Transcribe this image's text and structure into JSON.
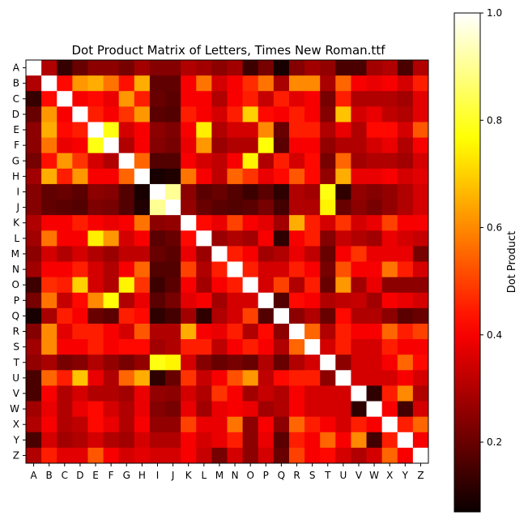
{
  "chart_data": {
    "type": "heatmap",
    "title": "Dot Product Matrix of Letters, Times New Roman.ttf",
    "x_categories": [
      "A",
      "B",
      "C",
      "D",
      "E",
      "F",
      "G",
      "H",
      "I",
      "J",
      "K",
      "L",
      "M",
      "N",
      "O",
      "P",
      "Q",
      "R",
      "S",
      "T",
      "U",
      "V",
      "W",
      "X",
      "Y",
      "Z"
    ],
    "y_categories": [
      "A",
      "B",
      "C",
      "D",
      "E",
      "F",
      "G",
      "H",
      "I",
      "J",
      "K",
      "L",
      "M",
      "N",
      "O",
      "P",
      "Q",
      "R",
      "S",
      "T",
      "U",
      "V",
      "W",
      "X",
      "Y",
      "Z"
    ],
    "colorbar": {
      "label": "Dot Product",
      "colormap": "hot",
      "range": [
        0.07,
        1.0
      ],
      "ticks": [
        0.2,
        0.4,
        0.6,
        0.8,
        1.0
      ],
      "tick_labels": [
        "0.2",
        "0.4",
        "0.6",
        "0.8",
        "1.0"
      ]
    },
    "values": [
      [
        1.0,
        0.3,
        0.13,
        0.2,
        0.25,
        0.25,
        0.22,
        0.28,
        0.24,
        0.24,
        0.3,
        0.28,
        0.25,
        0.28,
        0.14,
        0.22,
        0.09,
        0.24,
        0.28,
        0.26,
        0.16,
        0.16,
        0.28,
        0.3,
        0.16,
        0.3
      ],
      [
        0.3,
        1.0,
        0.42,
        0.62,
        0.65,
        0.57,
        0.43,
        0.65,
        0.19,
        0.19,
        0.4,
        0.57,
        0.35,
        0.4,
        0.47,
        0.57,
        0.29,
        0.6,
        0.6,
        0.29,
        0.55,
        0.4,
        0.38,
        0.4,
        0.35,
        0.45
      ],
      [
        0.13,
        0.42,
        1.0,
        0.4,
        0.42,
        0.38,
        0.62,
        0.45,
        0.2,
        0.18,
        0.4,
        0.4,
        0.3,
        0.4,
        0.45,
        0.33,
        0.45,
        0.37,
        0.4,
        0.22,
        0.45,
        0.3,
        0.3,
        0.3,
        0.28,
        0.37
      ],
      [
        0.2,
        0.62,
        0.4,
        1.0,
        0.45,
        0.4,
        0.48,
        0.62,
        0.18,
        0.17,
        0.45,
        0.4,
        0.35,
        0.45,
        0.7,
        0.42,
        0.4,
        0.45,
        0.4,
        0.24,
        0.68,
        0.35,
        0.38,
        0.32,
        0.3,
        0.37
      ],
      [
        0.25,
        0.65,
        0.42,
        0.45,
        1.0,
        0.78,
        0.35,
        0.4,
        0.25,
        0.23,
        0.4,
        0.74,
        0.3,
        0.35,
        0.35,
        0.6,
        0.2,
        0.45,
        0.45,
        0.3,
        0.38,
        0.3,
        0.42,
        0.42,
        0.35,
        0.53
      ],
      [
        0.25,
        0.57,
        0.38,
        0.4,
        0.78,
        1.0,
        0.3,
        0.4,
        0.24,
        0.22,
        0.38,
        0.62,
        0.27,
        0.3,
        0.3,
        0.77,
        0.18,
        0.4,
        0.4,
        0.26,
        0.3,
        0.3,
        0.35,
        0.38,
        0.3,
        0.4
      ],
      [
        0.22,
        0.43,
        0.62,
        0.48,
        0.35,
        0.3,
        1.0,
        0.55,
        0.17,
        0.17,
        0.4,
        0.35,
        0.32,
        0.4,
        0.75,
        0.3,
        0.45,
        0.35,
        0.42,
        0.22,
        0.55,
        0.28,
        0.3,
        0.3,
        0.28,
        0.35
      ],
      [
        0.28,
        0.65,
        0.45,
        0.62,
        0.4,
        0.4,
        0.55,
        1.0,
        0.09,
        0.1,
        0.57,
        0.4,
        0.32,
        0.55,
        0.48,
        0.38,
        0.42,
        0.53,
        0.42,
        0.26,
        0.65,
        0.38,
        0.38,
        0.4,
        0.35,
        0.37
      ],
      [
        0.24,
        0.19,
        0.2,
        0.18,
        0.25,
        0.24,
        0.17,
        0.09,
        1.0,
        0.9,
        0.25,
        0.18,
        0.2,
        0.17,
        0.14,
        0.18,
        0.12,
        0.3,
        0.28,
        0.78,
        0.12,
        0.26,
        0.24,
        0.26,
        0.3,
        0.35
      ],
      [
        0.24,
        0.19,
        0.18,
        0.17,
        0.23,
        0.22,
        0.17,
        0.1,
        0.9,
        1.0,
        0.26,
        0.2,
        0.18,
        0.17,
        0.18,
        0.22,
        0.15,
        0.3,
        0.3,
        0.75,
        0.2,
        0.25,
        0.22,
        0.26,
        0.3,
        0.35
      ],
      [
        0.3,
        0.4,
        0.4,
        0.45,
        0.4,
        0.38,
        0.4,
        0.57,
        0.25,
        0.26,
        1.0,
        0.42,
        0.38,
        0.5,
        0.4,
        0.37,
        0.28,
        0.65,
        0.45,
        0.35,
        0.48,
        0.35,
        0.38,
        0.5,
        0.4,
        0.4
      ],
      [
        0.28,
        0.57,
        0.4,
        0.4,
        0.74,
        0.62,
        0.35,
        0.4,
        0.18,
        0.2,
        0.42,
        1.0,
        0.27,
        0.3,
        0.28,
        0.4,
        0.12,
        0.4,
        0.45,
        0.24,
        0.33,
        0.3,
        0.28,
        0.38,
        0.35,
        0.33
      ],
      [
        0.25,
        0.35,
        0.3,
        0.35,
        0.3,
        0.27,
        0.32,
        0.32,
        0.2,
        0.18,
        0.38,
        0.27,
        1.0,
        0.45,
        0.4,
        0.28,
        0.3,
        0.38,
        0.32,
        0.2,
        0.4,
        0.48,
        0.38,
        0.38,
        0.38,
        0.22
      ],
      [
        0.28,
        0.4,
        0.4,
        0.45,
        0.35,
        0.3,
        0.4,
        0.55,
        0.17,
        0.17,
        0.5,
        0.3,
        0.45,
        1.0,
        0.45,
        0.35,
        0.35,
        0.45,
        0.4,
        0.22,
        0.52,
        0.4,
        0.4,
        0.57,
        0.45,
        0.35
      ],
      [
        0.14,
        0.47,
        0.45,
        0.7,
        0.35,
        0.3,
        0.75,
        0.48,
        0.14,
        0.18,
        0.4,
        0.28,
        0.4,
        0.45,
        1.0,
        0.35,
        0.5,
        0.3,
        0.45,
        0.2,
        0.62,
        0.28,
        0.38,
        0.25,
        0.25,
        0.25
      ],
      [
        0.22,
        0.57,
        0.33,
        0.42,
        0.6,
        0.77,
        0.3,
        0.38,
        0.18,
        0.22,
        0.37,
        0.4,
        0.28,
        0.35,
        0.35,
        1.0,
        0.17,
        0.42,
        0.4,
        0.3,
        0.32,
        0.33,
        0.28,
        0.4,
        0.38,
        0.35
      ],
      [
        0.09,
        0.29,
        0.45,
        0.4,
        0.2,
        0.18,
        0.45,
        0.42,
        0.12,
        0.15,
        0.28,
        0.12,
        0.3,
        0.35,
        0.5,
        0.17,
        1.0,
        0.25,
        0.3,
        0.2,
        0.42,
        0.3,
        0.3,
        0.25,
        0.18,
        0.2
      ],
      [
        0.24,
        0.6,
        0.37,
        0.45,
        0.45,
        0.4,
        0.35,
        0.53,
        0.3,
        0.3,
        0.65,
        0.4,
        0.38,
        0.45,
        0.3,
        0.42,
        0.25,
        1.0,
        0.55,
        0.3,
        0.45,
        0.4,
        0.4,
        0.55,
        0.45,
        0.5
      ],
      [
        0.28,
        0.6,
        0.4,
        0.4,
        0.45,
        0.4,
        0.42,
        0.42,
        0.28,
        0.3,
        0.45,
        0.45,
        0.32,
        0.4,
        0.45,
        0.4,
        0.3,
        0.55,
        1.0,
        0.35,
        0.45,
        0.35,
        0.35,
        0.45,
        0.4,
        0.4
      ],
      [
        0.26,
        0.29,
        0.22,
        0.24,
        0.3,
        0.26,
        0.22,
        0.26,
        0.78,
        0.75,
        0.35,
        0.24,
        0.2,
        0.22,
        0.2,
        0.3,
        0.2,
        0.3,
        0.35,
        1.0,
        0.25,
        0.35,
        0.35,
        0.4,
        0.55,
        0.42
      ],
      [
        0.16,
        0.55,
        0.45,
        0.68,
        0.38,
        0.3,
        0.55,
        0.65,
        0.12,
        0.2,
        0.48,
        0.33,
        0.4,
        0.52,
        0.62,
        0.32,
        0.42,
        0.45,
        0.45,
        0.25,
        1.0,
        0.35,
        0.35,
        0.35,
        0.4,
        0.35
      ],
      [
        0.16,
        0.4,
        0.3,
        0.35,
        0.3,
        0.3,
        0.28,
        0.38,
        0.26,
        0.25,
        0.35,
        0.3,
        0.48,
        0.4,
        0.28,
        0.33,
        0.3,
        0.4,
        0.35,
        0.35,
        0.35,
        1.0,
        0.12,
        0.45,
        0.6,
        0.3
      ],
      [
        0.28,
        0.38,
        0.3,
        0.38,
        0.42,
        0.35,
        0.3,
        0.38,
        0.24,
        0.22,
        0.38,
        0.28,
        0.38,
        0.4,
        0.38,
        0.28,
        0.3,
        0.4,
        0.35,
        0.35,
        0.35,
        0.12,
        1.0,
        0.4,
        0.15,
        0.35
      ],
      [
        0.3,
        0.4,
        0.3,
        0.32,
        0.42,
        0.38,
        0.3,
        0.4,
        0.26,
        0.26,
        0.5,
        0.38,
        0.38,
        0.57,
        0.25,
        0.4,
        0.25,
        0.55,
        0.45,
        0.4,
        0.35,
        0.45,
        0.4,
        1.0,
        0.45,
        0.55
      ],
      [
        0.16,
        0.35,
        0.28,
        0.3,
        0.35,
        0.3,
        0.28,
        0.35,
        0.3,
        0.3,
        0.4,
        0.35,
        0.38,
        0.45,
        0.25,
        0.38,
        0.18,
        0.45,
        0.4,
        0.55,
        0.4,
        0.6,
        0.15,
        0.45,
        1.0,
        0.4
      ],
      [
        0.3,
        0.45,
        0.37,
        0.37,
        0.53,
        0.4,
        0.35,
        0.37,
        0.35,
        0.35,
        0.4,
        0.33,
        0.22,
        0.35,
        0.25,
        0.35,
        0.2,
        0.5,
        0.4,
        0.42,
        0.35,
        0.3,
        0.35,
        0.55,
        0.4,
        1.0
      ]
    ]
  }
}
